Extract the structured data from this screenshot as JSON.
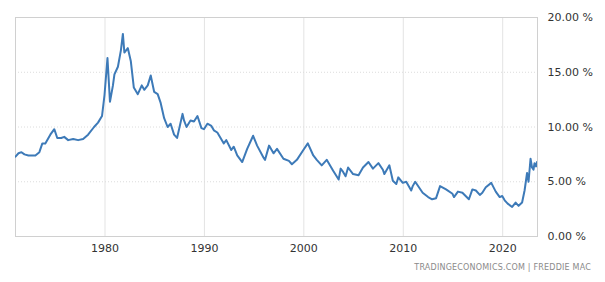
{
  "chart_data": {
    "type": "line",
    "caption": "TRADINGECONOMICS.COM | FREDDIE MAC",
    "color": "#3d7ab8",
    "grid": true,
    "xlim": [
      1971,
      2023.5
    ],
    "xticks": [
      1980,
      1990,
      2000,
      2010,
      2020
    ],
    "ylim": [
      0,
      20
    ],
    "yticks": [
      {
        "value": 0,
        "label": "0.00 %"
      },
      {
        "value": 5,
        "label": "5.00 %"
      },
      {
        "value": 10,
        "label": "10.00 %"
      },
      {
        "value": 15,
        "label": "15.00 %"
      },
      {
        "value": 20,
        "label": "20.00 %"
      }
    ],
    "x": [
      1971.0,
      1971.3,
      1971.6,
      1971.9,
      1972.3,
      1972.7,
      1973.0,
      1973.4,
      1973.7,
      1974.0,
      1974.5,
      1974.9,
      1975.2,
      1975.6,
      1975.9,
      1976.3,
      1976.8,
      1977.3,
      1977.8,
      1978.3,
      1978.9,
      1979.3,
      1979.7,
      1979.95,
      1980.25,
      1980.5,
      1980.8,
      1980.95,
      1981.3,
      1981.6,
      1981.8,
      1981.95,
      1982.3,
      1982.6,
      1982.9,
      1983.3,
      1983.7,
      1983.95,
      1984.3,
      1984.6,
      1984.95,
      1985.3,
      1985.6,
      1985.95,
      1986.3,
      1986.6,
      1986.95,
      1987.25,
      1987.8,
      1987.95,
      1988.2,
      1988.6,
      1988.95,
      1989.3,
      1989.7,
      1989.95,
      1990.3,
      1990.7,
      1990.95,
      1991.3,
      1991.95,
      1992.2,
      1992.7,
      1992.95,
      1993.3,
      1993.8,
      1994.3,
      1994.9,
      1995.3,
      1995.95,
      1996.1,
      1996.5,
      1996.95,
      1997.3,
      1997.95,
      1998.5,
      1998.8,
      1999.3,
      1999.95,
      2000.4,
      2000.95,
      2001.3,
      2001.8,
      2002.3,
      2002.95,
      2003.5,
      2003.7,
      2003.95,
      2004.2,
      2004.45,
      2004.95,
      2005.5,
      2005.95,
      2006.5,
      2006.95,
      2007.5,
      2007.95,
      2008.1,
      2008.6,
      2008.95,
      2009.3,
      2009.5,
      2009.95,
      2010.3,
      2010.8,
      2010.95,
      2011.2,
      2011.95,
      2012.5,
      2012.9,
      2013.3,
      2013.7,
      2014.3,
      2014.95,
      2015.1,
      2015.5,
      2015.95,
      2016.6,
      2016.95,
      2017.3,
      2017.7,
      2017.95,
      2018.3,
      2018.85,
      2019.3,
      2019.7,
      2019.95,
      2020.2,
      2020.5,
      2020.95,
      2021.3,
      2021.6,
      2021.95,
      2022.2,
      2022.45,
      2022.6,
      2022.8,
      2022.95,
      2023.1,
      2023.2,
      2023.35,
      2023.45
    ],
    "values": [
      7.3,
      7.6,
      7.7,
      7.5,
      7.4,
      7.4,
      7.4,
      7.7,
      8.5,
      8.5,
      9.3,
      9.8,
      9.0,
      9.0,
      9.1,
      8.8,
      8.9,
      8.8,
      8.9,
      9.3,
      10.0,
      10.4,
      11.0,
      12.9,
      16.3,
      12.3,
      13.8,
      14.8,
      15.5,
      17.0,
      18.5,
      16.8,
      17.2,
      16.0,
      13.6,
      13.0,
      13.8,
      13.4,
      13.8,
      14.7,
      13.2,
      13.0,
      12.2,
      10.8,
      10.0,
      10.3,
      9.3,
      9.0,
      11.2,
      10.6,
      10.0,
      10.6,
      10.5,
      11.0,
      9.9,
      9.8,
      10.3,
      10.1,
      9.7,
      9.5,
      8.5,
      8.8,
      7.9,
      8.2,
      7.4,
      6.8,
      8.0,
      9.2,
      8.3,
      7.2,
      7.0,
      8.3,
      7.6,
      8.0,
      7.1,
      6.9,
      6.6,
      7.0,
      7.9,
      8.5,
      7.4,
      7.0,
      6.5,
      7.0,
      6.0,
      5.2,
      6.2,
      5.9,
      5.5,
      6.3,
      5.7,
      5.6,
      6.3,
      6.8,
      6.2,
      6.7,
      6.1,
      5.7,
      6.5,
      5.1,
      4.8,
      5.4,
      4.9,
      5.0,
      4.2,
      4.6,
      5.0,
      4.0,
      3.6,
      3.4,
      3.5,
      4.6,
      4.3,
      3.9,
      3.6,
      4.1,
      4.0,
      3.4,
      4.3,
      4.2,
      3.8,
      4.0,
      4.5,
      4.9,
      4.1,
      3.6,
      3.7,
      3.3,
      3.0,
      2.7,
      3.1,
      2.8,
      3.1,
      4.2,
      5.8,
      5.0,
      7.1,
      6.3,
      6.1,
      6.7,
      6.4,
      6.8
    ]
  }
}
